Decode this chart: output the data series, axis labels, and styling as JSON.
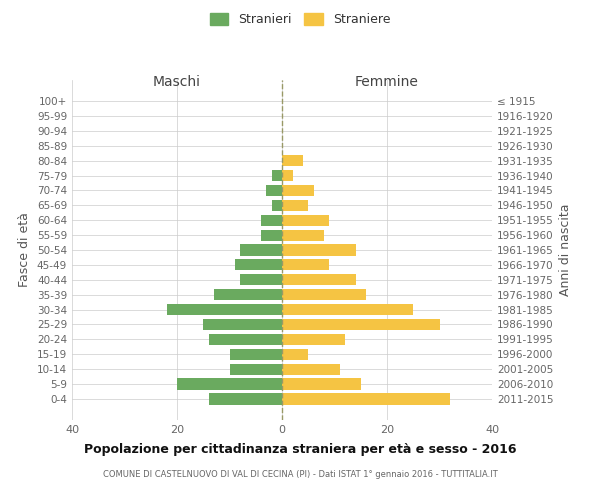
{
  "age_groups": [
    "100+",
    "95-99",
    "90-94",
    "85-89",
    "80-84",
    "75-79",
    "70-74",
    "65-69",
    "60-64",
    "55-59",
    "50-54",
    "45-49",
    "40-44",
    "35-39",
    "30-34",
    "25-29",
    "20-24",
    "15-19",
    "10-14",
    "5-9",
    "0-4"
  ],
  "birth_years": [
    "≤ 1915",
    "1916-1920",
    "1921-1925",
    "1926-1930",
    "1931-1935",
    "1936-1940",
    "1941-1945",
    "1946-1950",
    "1951-1955",
    "1956-1960",
    "1961-1965",
    "1966-1970",
    "1971-1975",
    "1976-1980",
    "1981-1985",
    "1986-1990",
    "1991-1995",
    "1996-2000",
    "2001-2005",
    "2006-2010",
    "2011-2015"
  ],
  "maschi": [
    0,
    0,
    0,
    0,
    0,
    2,
    3,
    2,
    4,
    4,
    8,
    9,
    8,
    13,
    22,
    15,
    14,
    10,
    10,
    20,
    14
  ],
  "femmine": [
    0,
    0,
    0,
    0,
    4,
    2,
    6,
    5,
    9,
    8,
    14,
    9,
    14,
    16,
    25,
    30,
    12,
    5,
    11,
    15,
    32
  ],
  "color_maschi": "#6aaa5f",
  "color_femmine": "#f5c443",
  "title": "Popolazione per cittadinanza straniera per età e sesso - 2016",
  "subtitle": "COMUNE DI CASTELNUOVO DI VAL DI CECINA (PI) - Dati ISTAT 1° gennaio 2016 - TUTTITALIA.IT",
  "ylabel_left": "Fasce di età",
  "ylabel_right": "Anni di nascita",
  "label_maschi": "Stranieri",
  "label_femmine": "Straniere",
  "xlim": 40,
  "background_color": "#ffffff",
  "grid_color": "#cccccc",
  "dashed_line_color": "#999966"
}
